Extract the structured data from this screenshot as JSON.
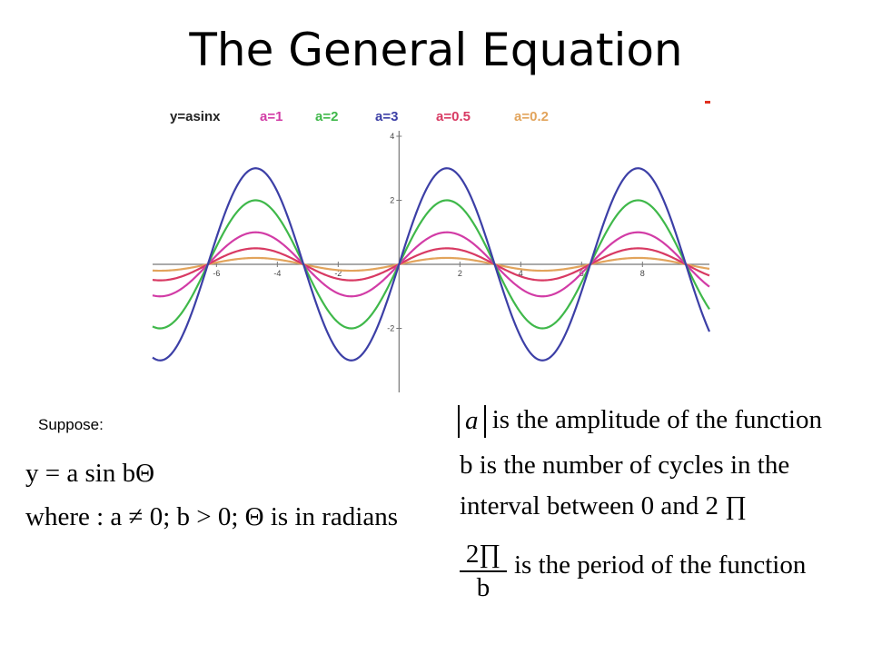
{
  "slide": {
    "title": "The General Equation"
  },
  "chart_data": {
    "type": "line",
    "function_label": "y=asinx",
    "x": {
      "range": [
        -8.1,
        10.2
      ],
      "tick_labels": [
        "-6",
        "-4",
        "-2",
        "2",
        "4",
        "6",
        "8"
      ],
      "tick_values": [
        -6,
        -4,
        -2,
        2,
        4,
        6,
        8
      ]
    },
    "y": {
      "range": [
        -4,
        4
      ],
      "tick_labels": [
        "4",
        "2",
        "-2"
      ],
      "tick_values": [
        4,
        2,
        -2
      ]
    },
    "series": [
      {
        "name": "a=1",
        "amplitude": 1,
        "color": "#d23ca6"
      },
      {
        "name": "a=2",
        "amplitude": 2,
        "color": "#3fb84a"
      },
      {
        "name": "a=3",
        "amplitude": 3,
        "color": "#3c3fa6"
      },
      {
        "name": "a=0.5",
        "amplitude": 0.5,
        "color": "#d83a63"
      },
      {
        "name": "a=0.2",
        "amplitude": 0.2,
        "color": "#e2a45c"
      }
    ],
    "grid": false,
    "legend_position": "top"
  },
  "notes": {
    "suppose": "Suppose:",
    "equation": "y = a sin bΘ",
    "where_line": "where : a ≠ 0; b > 0; Θ is in radians",
    "amplitude_var": "a",
    "amplitude_text": "is the amplitude of the function",
    "cycles_line_1": "b is the number of cycles in the",
    "cycles_line_2": "interval between 0 and 2 ∏",
    "frac_num": "2∏",
    "frac_den": "b",
    "period_text": "is the period of the function"
  }
}
